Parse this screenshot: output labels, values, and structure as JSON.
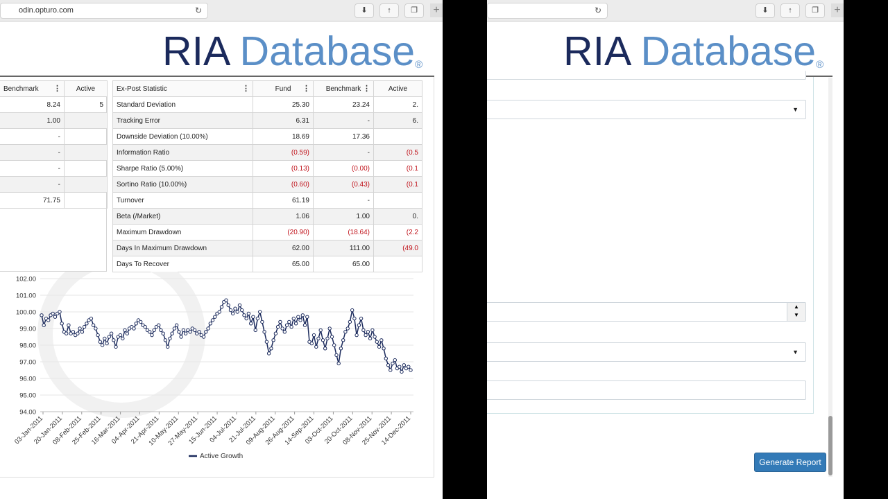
{
  "left_window": {
    "url": "odin.opturo.com",
    "brand": {
      "name1": "RIA",
      "name2": "Database",
      "mark": "®"
    },
    "left_table": {
      "headers": [
        "Benchmark",
        "Active"
      ],
      "rows": [
        [
          "8.24",
          "5"
        ],
        [
          "1.00",
          ""
        ],
        [
          "-",
          ""
        ],
        [
          "-",
          ""
        ],
        [
          "-",
          ""
        ],
        [
          "-",
          ""
        ],
        [
          "71.75",
          ""
        ]
      ]
    },
    "stats_table": {
      "headers": [
        "Ex-Post Statistic",
        "Fund",
        "Benchmark",
        "Active"
      ],
      "rows": [
        [
          "Standard Deviation",
          "25.30",
          "23.24",
          "2."
        ],
        [
          "Tracking Error",
          "6.31",
          "-",
          "6."
        ],
        [
          "Downside Deviation (10.00%)",
          "18.69",
          "17.36",
          ""
        ],
        [
          "Information Ratio",
          "(0.59)",
          "-",
          "(0.5"
        ],
        [
          "Sharpe Ratio (5.00%)",
          "(0.13)",
          "(0.00)",
          "(0.1"
        ],
        [
          "Sortino Ratio (10.00%)",
          "(0.60)",
          "(0.43)",
          "(0.1"
        ],
        [
          "Turnover",
          "61.19",
          "-",
          ""
        ],
        [
          "Beta (/Market)",
          "1.06",
          "1.00",
          "0."
        ],
        [
          "Maximum Drawdown",
          "(20.90)",
          "(18.64)",
          "(2.2"
        ],
        [
          "Days In Maximum Drawdown",
          "62.00",
          "111.00",
          "(49.0"
        ],
        [
          "Days To Recover",
          "65.00",
          "65.00",
          ""
        ]
      ]
    },
    "chart_data": {
      "type": "line",
      "title": "",
      "xlabel": "",
      "ylabel": "",
      "ylim": [
        94.0,
        102.0
      ],
      "y_ticks": [
        "102.00",
        "101.00",
        "100.00",
        "99.00",
        "98.00",
        "97.00",
        "96.00",
        "95.00",
        "94.00"
      ],
      "x_ticks": [
        "03-Jan-2011",
        "20-Jan-2011",
        "08-Feb-2011",
        "25-Feb-2011",
        "16-Mar-2011",
        "04-Apr-2011",
        "21-Apr-2011",
        "10-May-2011",
        "27-May-2011",
        "15-Jun-2011",
        "04-Jul-2011",
        "21-Jul-2011",
        "09-Aug-2011",
        "26-Aug-2011",
        "14-Sep-2011",
        "03-Oct-2011",
        "20-Oct-2011",
        "08-Nov-2011",
        "25-Nov-2011",
        "14-Dec-2011"
      ],
      "grid": true,
      "legend_position": "bottom",
      "series": [
        {
          "name": "Active Growth",
          "color": "#1b2a5c",
          "values": [
            99.8,
            99.2,
            99.6,
            99.5,
            99.8,
            99.9,
            99.7,
            99.9,
            100.0,
            99.3,
            98.8,
            98.7,
            99.2,
            98.7,
            98.8,
            98.6,
            98.7,
            99.0,
            98.8,
            99.1,
            99.3,
            99.5,
            99.6,
            99.2,
            99.0,
            98.6,
            98.2,
            98.0,
            98.4,
            98.1,
            98.5,
            98.7,
            98.3,
            97.9,
            98.5,
            98.6,
            98.4,
            98.9,
            98.7,
            99.0,
            99.1,
            99.0,
            99.3,
            99.5,
            99.4,
            99.2,
            99.1,
            98.9,
            98.8,
            98.6,
            98.9,
            99.1,
            99.2,
            98.9,
            98.7,
            98.3,
            97.9,
            98.4,
            98.7,
            99.0,
            99.2,
            98.8,
            98.5,
            98.9,
            98.7,
            98.9,
            98.8,
            99.0,
            98.9,
            98.7,
            98.8,
            98.6,
            98.5,
            98.8,
            99.0,
            99.3,
            99.5,
            99.7,
            99.9,
            100.0,
            100.3,
            100.6,
            100.7,
            100.4,
            100.1,
            99.9,
            100.2,
            100.0,
            100.4,
            100.1,
            99.8,
            99.6,
            99.9,
            99.3,
            99.7,
            98.9,
            99.6,
            100.0,
            99.4,
            98.8,
            98.2,
            97.5,
            97.8,
            98.3,
            98.7,
            99.1,
            99.4,
            99.0,
            98.8,
            99.2,
            99.4,
            99.1,
            99.6,
            99.3,
            99.7,
            99.5,
            99.8,
            99.2,
            99.7,
            98.2,
            98.1,
            98.6,
            97.9,
            98.4,
            98.9,
            98.3,
            97.8,
            98.4,
            99.0,
            98.5,
            98.0,
            97.4,
            96.9,
            97.8,
            98.3,
            98.8,
            99.0,
            99.4,
            100.1,
            99.6,
            98.6,
            99.2,
            99.6,
            98.9,
            98.6,
            98.8,
            98.4,
            98.9,
            98.5,
            98.2,
            97.9,
            98.3,
            97.8,
            97.2,
            96.8,
            96.5,
            96.9,
            97.1,
            96.6,
            96.7,
            96.4,
            96.8,
            96.6,
            96.7,
            96.5
          ]
        }
      ]
    }
  },
  "right_window": {
    "brand": {
      "name1": "RIA",
      "name2": "Database",
      "mark": "®"
    },
    "generate_report_label": "Generate Report"
  }
}
